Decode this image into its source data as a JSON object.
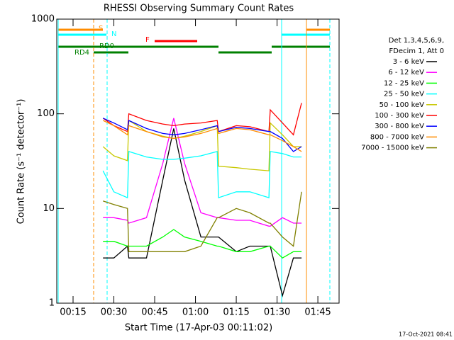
{
  "chart_data": {
    "type": "line",
    "title": "RHESSI Observing Summary Count Rates",
    "x_label": "Start Time (17-Apr-03 00:11:02)",
    "y_label": "Count Rate (s⁻¹ detector⁻¹)",
    "legend_header": [
      "Det 1,3,4,5,6,9,",
      "FDecim 1, Att 0"
    ],
    "timestamp": "17-Oct-2021 08:41",
    "annotations": [
      "S",
      "N",
      "RD0",
      "RD4",
      "F"
    ],
    "log_y": true,
    "ylim": [
      1,
      1000
    ],
    "yticks": [
      1,
      10,
      100,
      1000
    ],
    "xlim": [
      9,
      112.8
    ],
    "xticks": [
      {
        "value": 15,
        "label": "00:15"
      },
      {
        "value": 30,
        "label": "00:30"
      },
      {
        "value": 45,
        "label": "00:45"
      },
      {
        "value": 60,
        "label": "01:00"
      },
      {
        "value": 75,
        "label": "01:15"
      },
      {
        "value": 90,
        "label": "01:30"
      },
      {
        "value": 105,
        "label": "01:45"
      }
    ],
    "x": [
      26,
      30,
      35,
      35.5,
      42,
      48,
      52,
      56,
      62,
      68,
      68.5,
      75,
      80,
      87,
      87.5,
      92,
      96,
      99
    ],
    "series": [
      {
        "name": "3 - 6 keV",
        "color": "#000000",
        "values": [
          3,
          3,
          4,
          3,
          3,
          20,
          70,
          20,
          5,
          5,
          5,
          3.5,
          4,
          4,
          4,
          1.2,
          3,
          3
        ]
      },
      {
        "name": "6 - 12 keV",
        "color": "#ff00ff",
        "values": [
          8,
          8,
          7.5,
          7,
          8,
          30,
          90,
          30,
          9,
          8,
          8,
          7.5,
          7.5,
          6.5,
          6.5,
          8,
          7,
          7
        ]
      },
      {
        "name": "12 - 25 keV",
        "color": "#00ff00",
        "values": [
          4.5,
          4.5,
          4,
          4,
          4,
          5,
          6,
          5,
          4.5,
          4,
          4,
          3.5,
          3.5,
          4,
          4,
          3,
          3.5,
          3.5
        ]
      },
      {
        "name": "25 - 50 keV",
        "color": "#00ffff",
        "values": [
          25,
          15,
          13,
          40,
          35,
          33,
          33,
          34,
          36,
          40,
          13,
          15,
          15,
          13,
          40,
          38,
          35,
          35
        ]
      },
      {
        "name": "50 - 100 keV",
        "color": "#c8c800",
        "values": [
          45,
          36,
          32,
          85,
          65,
          58,
          55,
          58,
          65,
          75,
          28,
          27,
          26,
          25,
          80,
          60,
          45,
          45
        ]
      },
      {
        "name": "100 - 300 keV",
        "color": "#ff0000",
        "values": [
          90,
          75,
          65,
          100,
          85,
          78,
          75,
          78,
          80,
          85,
          65,
          75,
          73,
          65,
          110,
          80,
          60,
          130
        ]
      },
      {
        "name": "300 - 800 keV",
        "color": "#0000ff",
        "values": [
          90,
          80,
          68,
          85,
          70,
          62,
          60,
          62,
          68,
          75,
          65,
          72,
          70,
          65,
          65,
          55,
          40,
          45
        ]
      },
      {
        "name": "800 - 7000 keV",
        "color": "#ff8c00",
        "values": [
          85,
          75,
          60,
          75,
          65,
          57,
          55,
          57,
          62,
          70,
          62,
          70,
          68,
          60,
          60,
          52,
          45,
          40
        ]
      },
      {
        "name": "7000 - 15000 keV",
        "color": "#808000",
        "values": [
          12,
          11,
          10,
          3.5,
          3.5,
          3.5,
          3.5,
          3.5,
          4,
          8,
          8,
          10,
          9,
          7,
          7,
          5,
          4,
          15
        ]
      }
    ]
  }
}
